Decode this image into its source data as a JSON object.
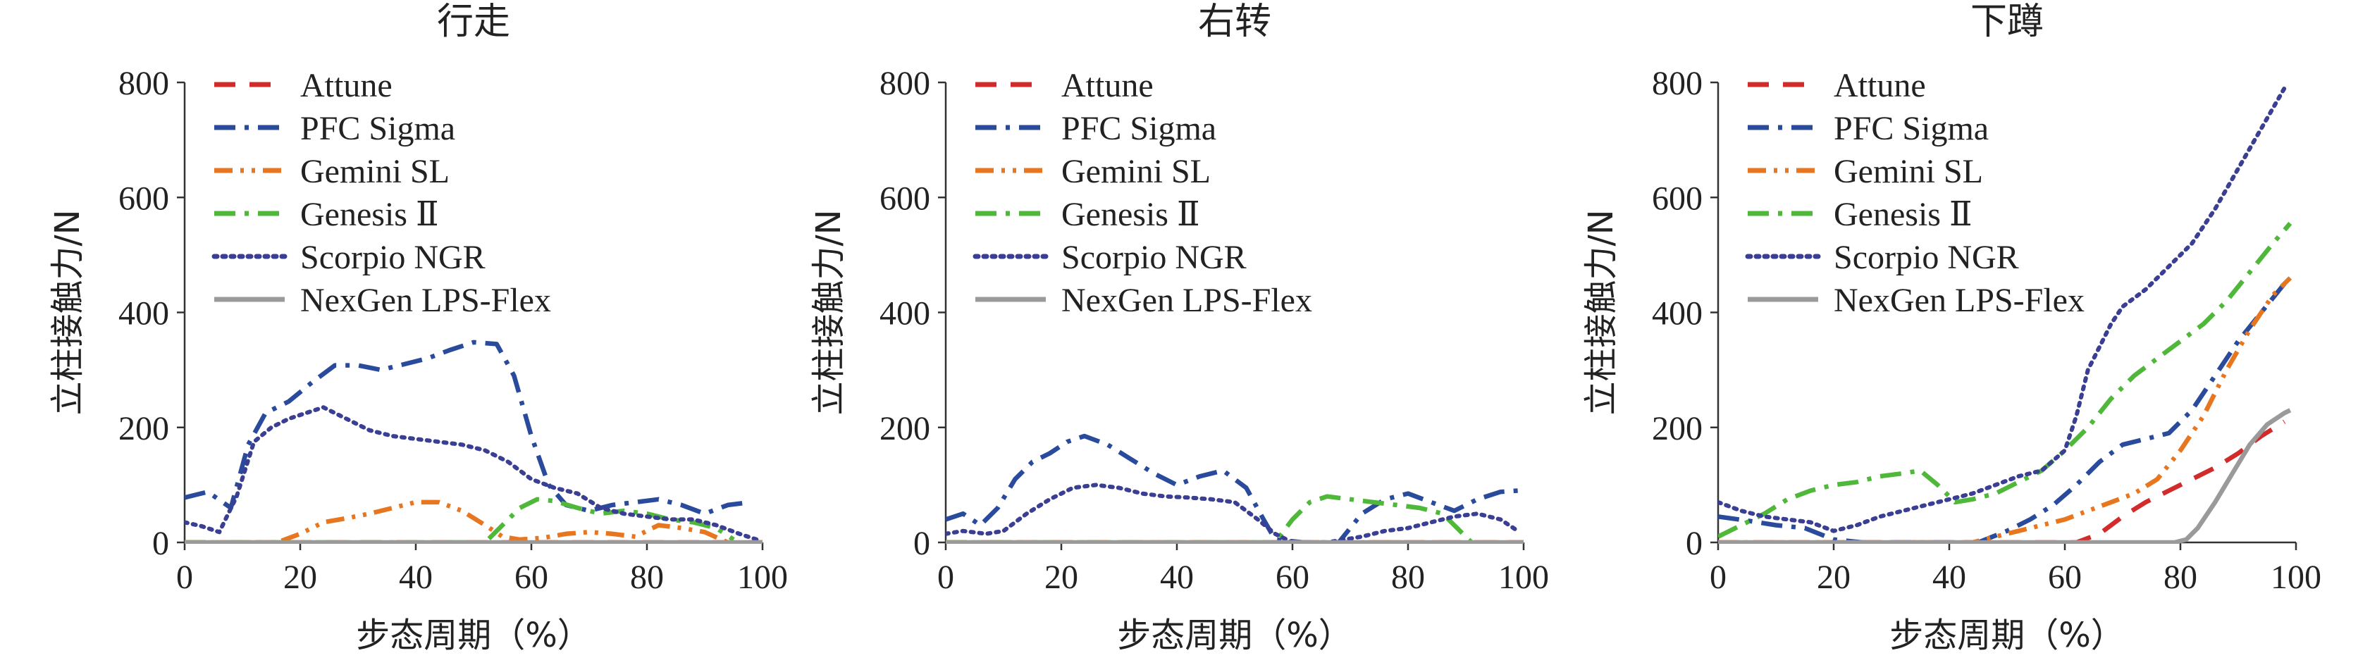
{
  "chart_data": [
    {
      "type": "line",
      "title": "行走",
      "xlabel": "步态周期（%）",
      "ylabel": "立柱接触力/N",
      "xlim": [
        0,
        100
      ],
      "ylim": [
        0,
        800
      ],
      "xticks": [
        "0",
        "20",
        "40",
        "60",
        "80",
        "100"
      ],
      "yticks": [
        "0",
        "200",
        "400",
        "600",
        "800"
      ],
      "grid": false,
      "legend_position": "top-left",
      "series": [
        {
          "name": "Attune",
          "color": "#d22b2b",
          "dash": "dash",
          "x": [
            0,
            100
          ],
          "y": [
            0,
            0
          ]
        },
        {
          "name": "PFC Sigma",
          "color": "#2a4a9b",
          "dash": "dashdot",
          "x": [
            0,
            4,
            8,
            11,
            14,
            18,
            22,
            26,
            30,
            34,
            38,
            42,
            46,
            50,
            54,
            57,
            60,
            63,
            66,
            70,
            74,
            78,
            82,
            86,
            90,
            94,
            98
          ],
          "y": [
            78,
            88,
            60,
            170,
            225,
            245,
            278,
            308,
            308,
            300,
            310,
            320,
            335,
            348,
            345,
            290,
            185,
            100,
            65,
            55,
            65,
            70,
            75,
            65,
            50,
            65,
            70
          ]
        },
        {
          "name": "Gemini SL",
          "color": "#e8761f",
          "dash": "dashdotdot",
          "x": [
            0,
            16,
            20,
            24,
            28,
            32,
            36,
            40,
            44,
            48,
            52,
            55,
            58,
            62,
            66,
            70,
            74,
            78,
            82,
            86,
            90,
            94
          ],
          "y": [
            0,
            0,
            15,
            35,
            42,
            50,
            60,
            70,
            70,
            55,
            30,
            10,
            5,
            8,
            15,
            18,
            15,
            10,
            30,
            25,
            18,
            0
          ]
        },
        {
          "name": "Genesis Ⅱ",
          "color": "#4fb83a",
          "dash": "dashdot",
          "x": [
            0,
            52,
            55,
            58,
            61,
            64,
            68,
            72,
            76,
            80,
            84,
            88,
            92,
            95
          ],
          "y": [
            0,
            0,
            30,
            60,
            75,
            72,
            60,
            50,
            55,
            50,
            40,
            35,
            25,
            5
          ]
        },
        {
          "name": "Scorpio NGR",
          "color": "#3a3f94",
          "dash": "dot",
          "x": [
            0,
            3,
            6,
            9,
            12,
            15,
            18,
            21,
            24,
            28,
            32,
            36,
            40,
            44,
            48,
            52,
            56,
            60,
            64,
            68,
            72,
            76,
            80,
            84,
            88,
            92,
            96,
            99
          ],
          "y": [
            35,
            28,
            18,
            80,
            175,
            200,
            215,
            225,
            235,
            215,
            195,
            185,
            180,
            175,
            170,
            160,
            140,
            110,
            95,
            85,
            60,
            50,
            45,
            40,
            40,
            30,
            15,
            5
          ]
        },
        {
          "name": "NexGen LPS-Flex",
          "color": "#9a9a9a",
          "dash": "solid",
          "x": [
            0,
            100
          ],
          "y": [
            0,
            0
          ]
        }
      ]
    },
    {
      "type": "line",
      "title": "右转",
      "xlabel": "步态周期（%）",
      "ylabel": "立柱接触力/N",
      "xlim": [
        0,
        100
      ],
      "ylim": [
        0,
        800
      ],
      "xticks": [
        "0",
        "20",
        "40",
        "60",
        "80",
        "100"
      ],
      "yticks": [
        "0",
        "200",
        "400",
        "600",
        "800"
      ],
      "grid": false,
      "legend_position": "top-left",
      "series": [
        {
          "name": "Attune",
          "color": "#d22b2b",
          "dash": "dash",
          "x": [
            0,
            100
          ],
          "y": [
            0,
            0
          ]
        },
        {
          "name": "PFC Sigma",
          "color": "#2a4a9b",
          "dash": "dashdot",
          "x": [
            0,
            3,
            6,
            9,
            12,
            15,
            18,
            21,
            24,
            28,
            32,
            36,
            40,
            44,
            48,
            52,
            55,
            57,
            62,
            68,
            72,
            76,
            80,
            84,
            88,
            92,
            96,
            99
          ],
          "y": [
            40,
            50,
            30,
            60,
            110,
            140,
            155,
            175,
            185,
            170,
            145,
            120,
            100,
            115,
            125,
            95,
            40,
            5,
            0,
            0,
            50,
            75,
            85,
            70,
            55,
            75,
            88,
            90
          ]
        },
        {
          "name": "Gemini SL",
          "color": "#e8761f",
          "dash": "dashdotdot",
          "x": [
            0,
            100
          ],
          "y": [
            0,
            0
          ]
        },
        {
          "name": "Genesis Ⅱ",
          "color": "#4fb83a",
          "dash": "dashdot",
          "x": [
            0,
            57,
            60,
            63,
            66,
            70,
            74,
            78,
            82,
            86,
            89,
            91
          ],
          "y": [
            0,
            0,
            40,
            70,
            80,
            75,
            70,
            65,
            60,
            50,
            20,
            0
          ]
        },
        {
          "name": "Scorpio NGR",
          "color": "#3a3f94",
          "dash": "dot",
          "x": [
            0,
            3,
            7,
            10,
            14,
            18,
            22,
            26,
            30,
            34,
            38,
            42,
            46,
            50,
            54,
            57,
            60,
            66,
            72,
            76,
            80,
            84,
            88,
            92,
            96,
            99
          ],
          "y": [
            15,
            20,
            15,
            20,
            50,
            75,
            95,
            100,
            95,
            85,
            80,
            78,
            75,
            70,
            40,
            15,
            0,
            0,
            10,
            20,
            25,
            35,
            45,
            50,
            40,
            20
          ]
        },
        {
          "name": "NexGen LPS-Flex",
          "color": "#9a9a9a",
          "dash": "solid",
          "x": [
            0,
            100
          ],
          "y": [
            0,
            0
          ]
        }
      ]
    },
    {
      "type": "line",
      "title": "下蹲",
      "xlabel": "步态周期（%）",
      "ylabel": "立柱接触力/N",
      "xlim": [
        0,
        100
      ],
      "ylim": [
        0,
        800
      ],
      "xticks": [
        "0",
        "20",
        "40",
        "60",
        "80",
        "100"
      ],
      "yticks": [
        "0",
        "200",
        "400",
        "600",
        "800"
      ],
      "grid": false,
      "legend_position": "top-left",
      "series": [
        {
          "name": "Attune",
          "color": "#d22b2b",
          "dash": "dash",
          "x": [
            0,
            62,
            66,
            70,
            74,
            78,
            82,
            86,
            90,
            94,
            98
          ],
          "y": [
            0,
            0,
            15,
            45,
            70,
            90,
            110,
            130,
            155,
            185,
            210
          ]
        },
        {
          "name": "PFC Sigma",
          "color": "#2a4a9b",
          "dash": "dashdot",
          "x": [
            0,
            5,
            10,
            15,
            20,
            25,
            30,
            35,
            40,
            45,
            50,
            54,
            58,
            62,
            66,
            70,
            74,
            78,
            82,
            86,
            90,
            94,
            98
          ],
          "y": [
            45,
            38,
            30,
            25,
            5,
            0,
            0,
            0,
            0,
            0,
            20,
            40,
            65,
            100,
            140,
            170,
            180,
            190,
            230,
            290,
            350,
            400,
            450
          ]
        },
        {
          "name": "Gemini SL",
          "color": "#e8761f",
          "dash": "dashdotdot",
          "x": [
            0,
            44,
            48,
            52,
            56,
            60,
            64,
            68,
            72,
            76,
            80,
            84,
            88,
            92,
            96,
            99
          ],
          "y": [
            0,
            0,
            10,
            20,
            30,
            40,
            55,
            70,
            85,
            110,
            160,
            220,
            300,
            370,
            430,
            460
          ]
        },
        {
          "name": "Genesis Ⅱ",
          "color": "#4fb83a",
          "dash": "dashdot",
          "x": [
            0,
            4,
            8,
            12,
            16,
            20,
            24,
            28,
            32,
            35,
            38,
            41,
            44,
            48,
            52,
            56,
            60,
            64,
            68,
            72,
            76,
            80,
            84,
            88,
            92,
            96,
            99
          ],
          "y": [
            10,
            30,
            50,
            75,
            90,
            100,
            105,
            115,
            120,
            125,
            100,
            70,
            75,
            85,
            105,
            125,
            160,
            200,
            250,
            290,
            320,
            350,
            380,
            420,
            470,
            520,
            555
          ]
        },
        {
          "name": "Scorpio NGR",
          "color": "#3a3f94",
          "dash": "dot",
          "x": [
            0,
            4,
            8,
            12,
            16,
            20,
            24,
            28,
            32,
            36,
            40,
            44,
            48,
            52,
            56,
            60,
            62,
            64,
            66,
            68,
            70,
            74,
            78,
            82,
            86,
            90,
            94,
            98
          ],
          "y": [
            70,
            55,
            45,
            40,
            35,
            20,
            30,
            45,
            55,
            65,
            75,
            85,
            100,
            115,
            125,
            160,
            220,
            300,
            340,
            380,
            410,
            440,
            480,
            520,
            580,
            650,
            720,
            790
          ]
        },
        {
          "name": "NexGen LPS-Flex",
          "color": "#9a9a9a",
          "dash": "solid",
          "x": [
            0,
            79,
            81,
            83,
            86,
            89,
            92,
            95,
            98,
            99
          ],
          "y": [
            0,
            0,
            5,
            25,
            70,
            120,
            170,
            205,
            225,
            230
          ]
        }
      ]
    }
  ]
}
